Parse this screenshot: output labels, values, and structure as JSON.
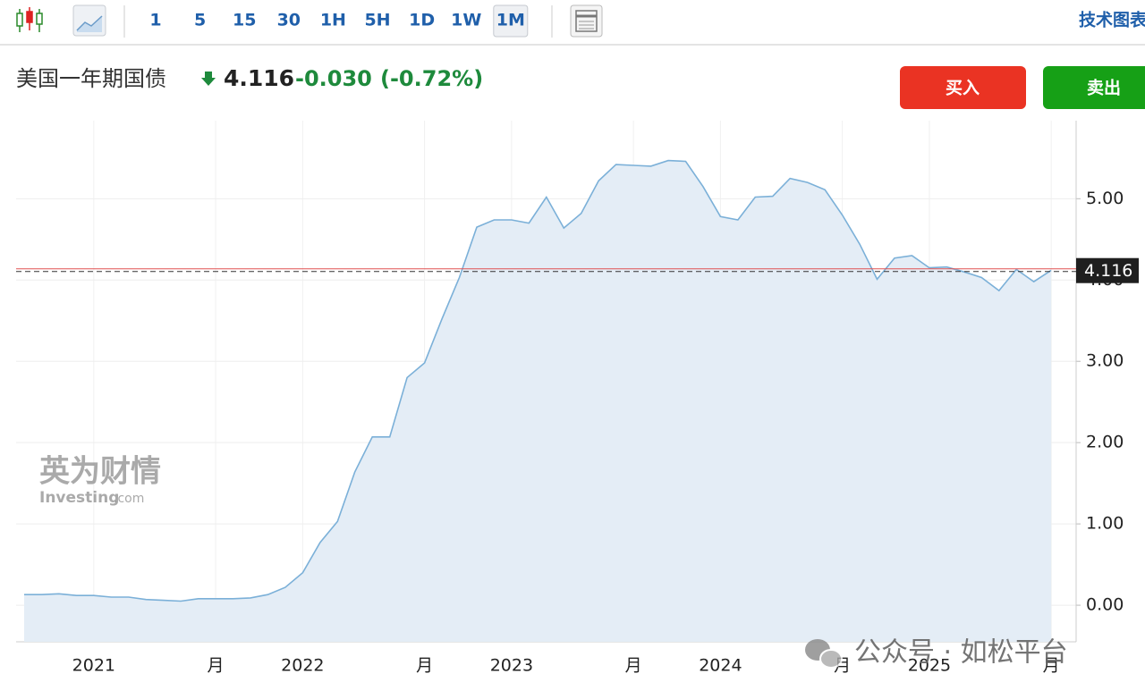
{
  "toolbar": {
    "intervals": [
      "1",
      "5",
      "15",
      "30",
      "1H",
      "5H",
      "1D",
      "1W",
      "1M"
    ],
    "active_interval": "1M",
    "right_link": "技术图表"
  },
  "header": {
    "name": "美国一年期国债",
    "buy": "买入",
    "sell": "卖出"
  },
  "watermark": {
    "brand": "英为财情",
    "site": "Investing",
    "site_suffix": ".com"
  },
  "overlay": {
    "text": "公众号 · 如松平台"
  },
  "chart_data": {
    "type": "area",
    "price": 4.116,
    "change": "-0.030",
    "change_pct": "(-0.72%)",
    "categories": [
      null,
      null,
      null,
      null,
      "2021",
      null,
      null,
      null,
      null,
      null,
      null,
      "月",
      null,
      null,
      null,
      null,
      "2022",
      null,
      null,
      null,
      null,
      null,
      null,
      "月",
      null,
      null,
      null,
      null,
      "2023",
      null,
      null,
      null,
      null,
      null,
      null,
      "月",
      null,
      null,
      null,
      null,
      "2024",
      null,
      null,
      null,
      null,
      null,
      null,
      "月",
      null,
      null,
      null,
      null,
      "2025",
      null,
      null,
      null,
      null,
      null,
      null,
      "月"
    ],
    "values": [
      0.13,
      0.13,
      0.14,
      0.12,
      0.12,
      0.1,
      0.1,
      0.07,
      0.06,
      0.05,
      0.08,
      0.08,
      0.08,
      0.09,
      0.13,
      0.22,
      0.4,
      0.77,
      1.03,
      1.64,
      2.07,
      2.07,
      2.8,
      2.98,
      3.52,
      4.03,
      4.65,
      4.74,
      4.74,
      4.7,
      5.02,
      4.64,
      4.82,
      5.22,
      5.42,
      5.41,
      5.4,
      5.47,
      5.46,
      5.15,
      4.78,
      4.74,
      5.02,
      5.03,
      5.25,
      5.2,
      5.11,
      4.8,
      4.44,
      4.01,
      4.27,
      4.3,
      4.15,
      4.16,
      4.1,
      4.03,
      3.87,
      4.13,
      3.98,
      4.12
    ],
    "color": "#7bb0d8",
    "fill": "#e4edf6",
    "ylim": [
      -0.45,
      5.96
    ],
    "yticks": [
      {
        "value": 0,
        "label": "0.00"
      },
      {
        "value": 1,
        "label": "1.00"
      },
      {
        "value": 2,
        "label": "2.00"
      },
      {
        "value": 3,
        "label": "3.00"
      },
      {
        "value": 4,
        "label": "4.00"
      },
      {
        "value": 5,
        "label": "5.00"
      }
    ],
    "grid": true
  }
}
